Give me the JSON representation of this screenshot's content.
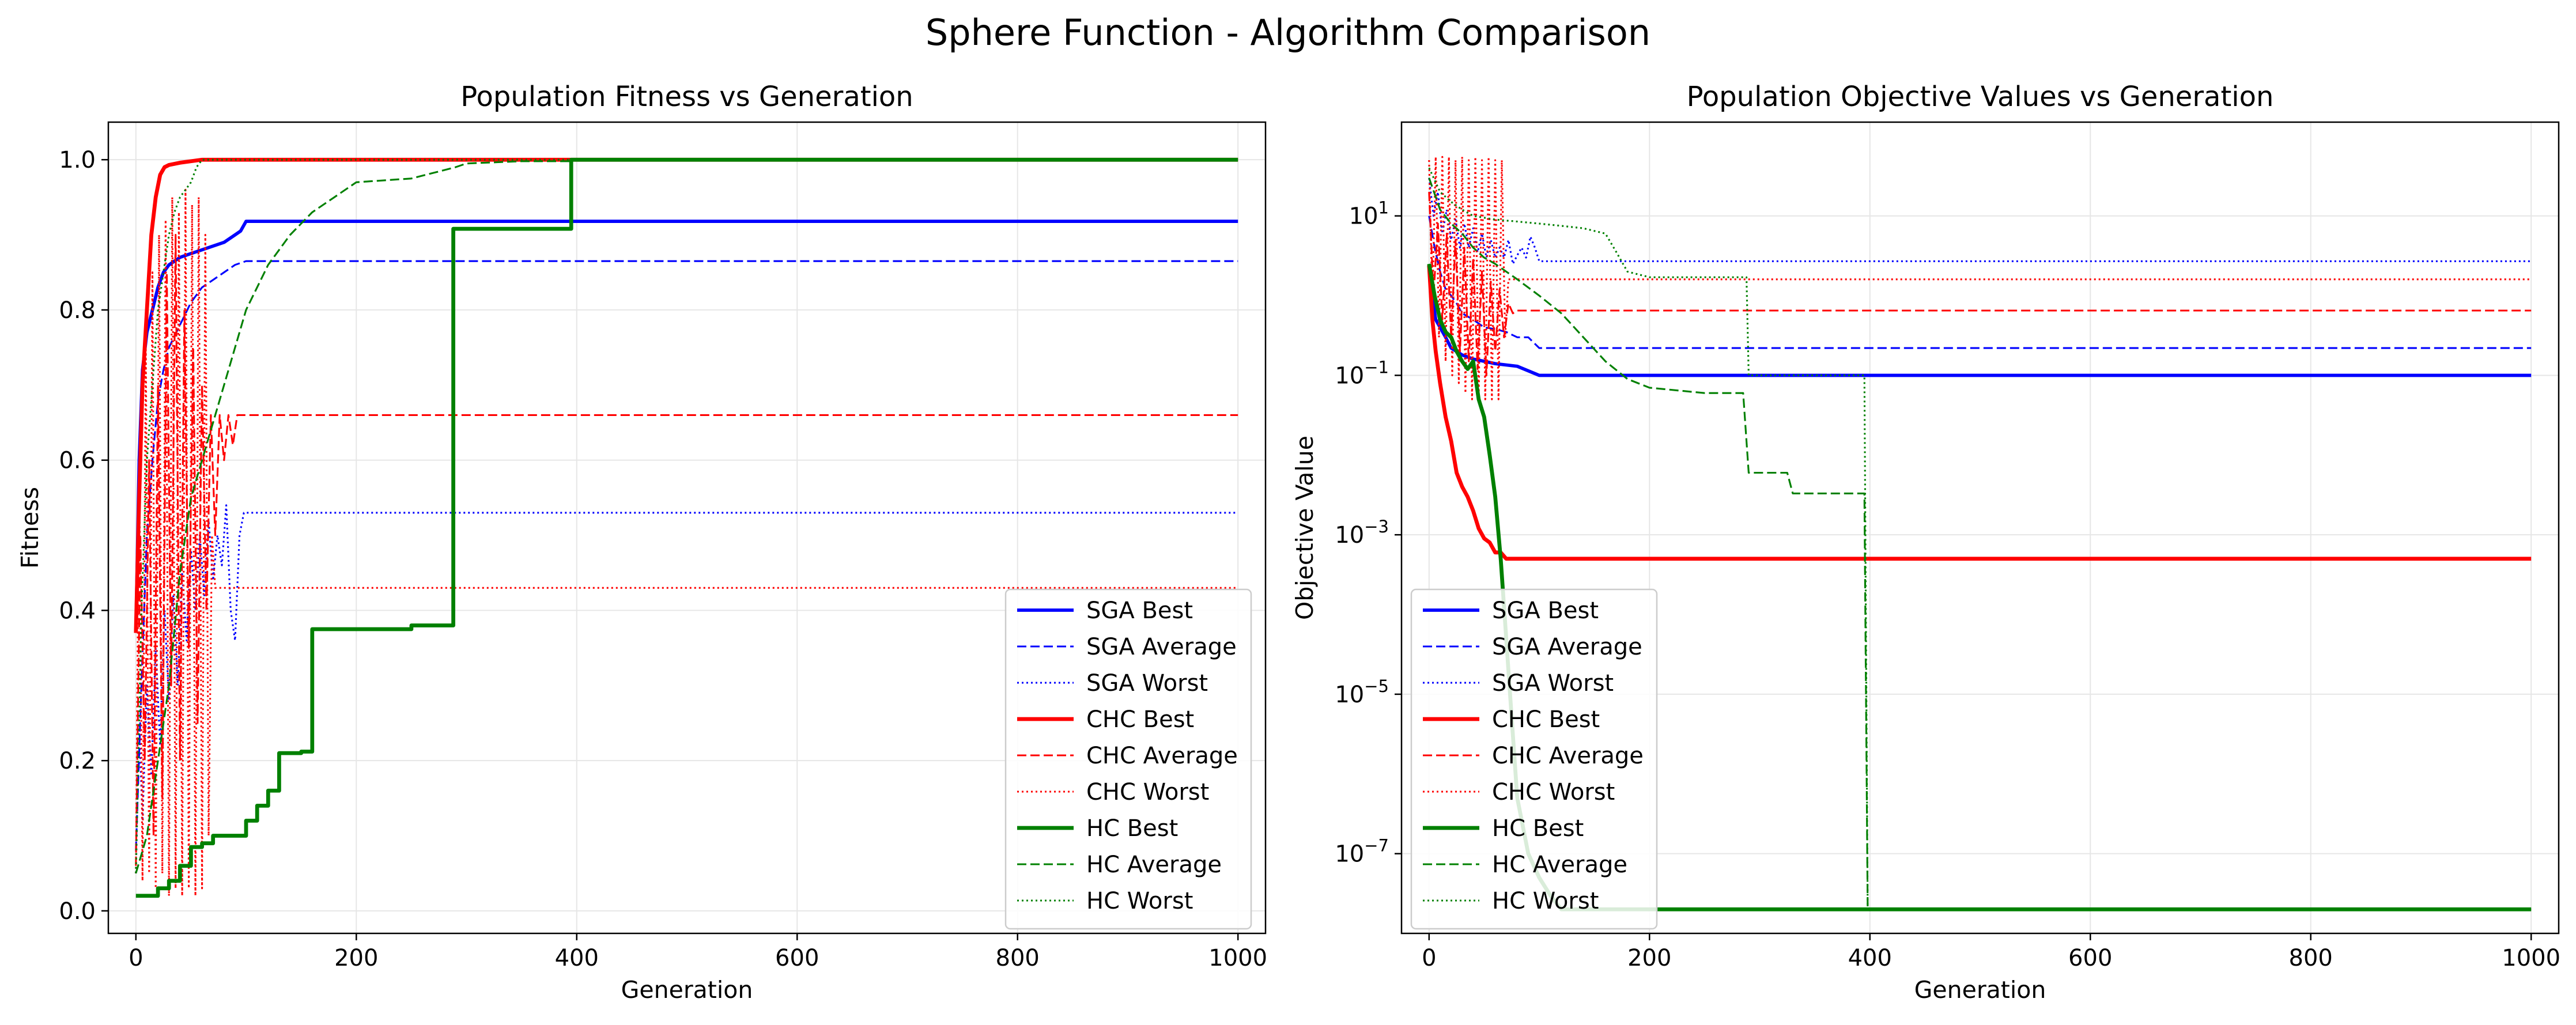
{
  "figure": {
    "suptitle": "Sphere Function - Algorithm Comparison"
  },
  "colors": {
    "sga": "#0000ff",
    "chc": "#ff0000",
    "hc": "#008000",
    "grid": "#e6e6e6",
    "axis": "#000000"
  },
  "chart_data": [
    {
      "type": "line",
      "title": "Population Fitness vs Generation",
      "xlabel": "Generation",
      "ylabel": "Fitness",
      "xlim": [
        -25,
        1025
      ],
      "ylim": [
        -0.03,
        1.05
      ],
      "yscale": "linear",
      "xticks": [
        0,
        200,
        400,
        600,
        800,
        1000
      ],
      "xtick_labels": [
        "0",
        "200",
        "400",
        "600",
        "800",
        "1000"
      ],
      "yticks": [
        0.0,
        0.2,
        0.4,
        0.6,
        0.8,
        1.0
      ],
      "ytick_labels": [
        "0.0",
        "0.2",
        "0.4",
        "0.6",
        "0.8",
        "1.0"
      ],
      "grid": true,
      "legend_position": "lower-right",
      "series": [
        {
          "name": "SGA Best",
          "color": "#0000ff",
          "style": "solid",
          "width": 2.2,
          "x": [
            0,
            3,
            6,
            10,
            15,
            20,
            25,
            30,
            40,
            50,
            60,
            70,
            80,
            90,
            95,
            100,
            1000
          ],
          "y": [
            0.37,
            0.6,
            0.72,
            0.77,
            0.8,
            0.83,
            0.85,
            0.86,
            0.87,
            0.875,
            0.88,
            0.885,
            0.89,
            0.9,
            0.905,
            0.918,
            0.918
          ]
        },
        {
          "name": "SGA Average",
          "color": "#0000ff",
          "style": "dashed",
          "width": 1.2,
          "x": [
            0,
            5,
            10,
            15,
            20,
            25,
            30,
            40,
            50,
            60,
            70,
            80,
            90,
            100,
            1000
          ],
          "y": [
            0.08,
            0.3,
            0.5,
            0.6,
            0.68,
            0.72,
            0.75,
            0.78,
            0.81,
            0.83,
            0.84,
            0.85,
            0.86,
            0.865,
            0.865
          ]
        },
        {
          "name": "SGA Worst",
          "color": "#0000ff",
          "style": "dotted",
          "width": 1.2,
          "x": [
            0,
            3,
            6,
            10,
            14,
            18,
            22,
            26,
            30,
            34,
            38,
            42,
            46,
            50,
            54,
            58,
            62,
            66,
            70,
            74,
            78,
            82,
            86,
            90,
            94,
            98,
            1000
          ],
          "y": [
            0.05,
            0.25,
            0.12,
            0.3,
            0.18,
            0.35,
            0.22,
            0.4,
            0.28,
            0.42,
            0.3,
            0.45,
            0.36,
            0.48,
            0.4,
            0.5,
            0.42,
            0.52,
            0.44,
            0.5,
            0.46,
            0.54,
            0.4,
            0.36,
            0.5,
            0.53,
            0.53
          ]
        },
        {
          "name": "CHC Best",
          "color": "#ff0000",
          "style": "solid",
          "width": 2.6,
          "x": [
            0,
            3,
            6,
            10,
            14,
            18,
            22,
            26,
            30,
            40,
            50,
            60,
            1000
          ],
          "y": [
            0.37,
            0.55,
            0.7,
            0.8,
            0.9,
            0.95,
            0.98,
            0.99,
            0.993,
            0.996,
            0.998,
            1.0,
            1.0
          ]
        },
        {
          "name": "CHC Average",
          "color": "#ff0000",
          "style": "dashed",
          "width": 1.2,
          "x": [
            0,
            4,
            8,
            12,
            16,
            20,
            24,
            28,
            32,
            36,
            40,
            44,
            48,
            52,
            56,
            60,
            64,
            68,
            72,
            76,
            80,
            84,
            88,
            92,
            96,
            100,
            1000
          ],
          "y": [
            0.06,
            0.5,
            0.2,
            0.6,
            0.1,
            0.7,
            0.15,
            0.85,
            0.3,
            0.9,
            0.2,
            0.8,
            0.35,
            0.75,
            0.25,
            0.7,
            0.4,
            0.66,
            0.5,
            0.66,
            0.6,
            0.66,
            0.62,
            0.66,
            0.66,
            0.66,
            0.66
          ]
        },
        {
          "name": "CHC Worst",
          "color": "#ff0000",
          "style": "dotted",
          "width": 1.2,
          "x": [
            0,
            3,
            6,
            9,
            12,
            15,
            18,
            21,
            24,
            27,
            30,
            33,
            36,
            39,
            42,
            45,
            48,
            51,
            54,
            57,
            60,
            63,
            66,
            69,
            72,
            75,
            1000
          ],
          "y": [
            0.05,
            0.6,
            0.04,
            0.75,
            0.05,
            0.85,
            0.03,
            0.9,
            0.05,
            0.92,
            0.02,
            0.95,
            0.03,
            0.93,
            0.02,
            0.96,
            0.03,
            0.94,
            0.02,
            0.95,
            0.03,
            0.9,
            0.1,
            0.5,
            0.43,
            0.43,
            0.43
          ]
        },
        {
          "name": "HC Best",
          "color": "#008000",
          "style": "solid",
          "width": 2.6,
          "x": [
            0,
            20,
            20,
            30,
            30,
            40,
            40,
            50,
            50,
            60,
            60,
            70,
            70,
            100,
            100,
            110,
            110,
            120,
            120,
            130,
            130,
            140,
            140,
            150,
            150,
            160,
            160,
            250,
            250,
            288,
            288,
            395,
            395,
            1000
          ],
          "y": [
            0.02,
            0.02,
            0.03,
            0.03,
            0.04,
            0.04,
            0.06,
            0.06,
            0.085,
            0.085,
            0.09,
            0.09,
            0.1,
            0.1,
            0.12,
            0.12,
            0.14,
            0.14,
            0.16,
            0.16,
            0.21,
            0.21,
            0.21,
            0.21,
            0.212,
            0.212,
            0.375,
            0.375,
            0.38,
            0.38,
            0.908,
            0.908,
            1.0,
            1.0
          ]
        },
        {
          "name": "HC Average",
          "color": "#008000",
          "style": "dashed",
          "width": 1.2,
          "x": [
            0,
            10,
            20,
            30,
            40,
            50,
            60,
            70,
            80,
            90,
            100,
            120,
            140,
            160,
            180,
            200,
            250,
            290,
            300,
            350,
            395,
            400,
            1000
          ],
          "y": [
            0.05,
            0.1,
            0.2,
            0.3,
            0.45,
            0.55,
            0.6,
            0.65,
            0.7,
            0.75,
            0.8,
            0.86,
            0.9,
            0.93,
            0.95,
            0.97,
            0.975,
            0.99,
            0.995,
            0.998,
            0.998,
            1.0,
            1.0
          ]
        },
        {
          "name": "HC Worst",
          "color": "#008000",
          "style": "dotted",
          "width": 1.2,
          "x": [
            0,
            5,
            10,
            15,
            20,
            25,
            30,
            35,
            40,
            45,
            50,
            55,
            60,
            1000
          ],
          "y": [
            0.05,
            0.4,
            0.6,
            0.7,
            0.8,
            0.85,
            0.9,
            0.93,
            0.95,
            0.96,
            0.97,
            0.99,
            1.0,
            1.0
          ]
        }
      ]
    },
    {
      "type": "line",
      "title": "Population Objective Values vs Generation",
      "xlabel": "Generation",
      "ylabel": "Objective Value",
      "xlim": [
        -25,
        1025
      ],
      "ylim": [
        1e-08,
        150
      ],
      "yscale": "log",
      "xticks": [
        0,
        200,
        400,
        600,
        800,
        1000
      ],
      "xtick_labels": [
        "0",
        "200",
        "400",
        "600",
        "800",
        "1000"
      ],
      "yticks": [
        1e-07,
        1e-05,
        0.001,
        0.1,
        10
      ],
      "ytick_labels": [
        {
          "base": "10",
          "exp": "−7"
        },
        {
          "base": "10",
          "exp": "−5"
        },
        {
          "base": "10",
          "exp": "−3"
        },
        {
          "base": "10",
          "exp": "−1"
        },
        {
          "base": "10",
          "exp": "1"
        }
      ],
      "grid": true,
      "legend_position": "lower-left",
      "series": [
        {
          "name": "SGA Best",
          "color": "#0000ff",
          "style": "solid",
          "width": 2.2,
          "x": [
            0,
            3,
            6,
            10,
            15,
            20,
            30,
            40,
            50,
            60,
            80,
            100,
            1000
          ],
          "y": [
            2.4,
            1.0,
            0.5,
            0.4,
            0.3,
            0.22,
            0.18,
            0.16,
            0.15,
            0.14,
            0.13,
            0.1,
            0.1
          ]
        },
        {
          "name": "SGA Average",
          "color": "#0000ff",
          "style": "dashed",
          "width": 1.2,
          "x": [
            0,
            5,
            10,
            15,
            20,
            25,
            30,
            40,
            50,
            60,
            70,
            80,
            90,
            100,
            1000
          ],
          "y": [
            10,
            4,
            2,
            1.2,
            1.0,
            0.8,
            0.6,
            0.5,
            0.4,
            0.38,
            0.35,
            0.3,
            0.3,
            0.22,
            0.22
          ]
        },
        {
          "name": "SGA Worst",
          "color": "#0000ff",
          "style": "dotted",
          "width": 1.2,
          "x": [
            0,
            4,
            8,
            12,
            16,
            20,
            24,
            28,
            32,
            36,
            40,
            44,
            48,
            52,
            56,
            60,
            64,
            68,
            72,
            76,
            80,
            84,
            88,
            92,
            96,
            100,
            1000
          ],
          "y": [
            30,
            10,
            20,
            6,
            12,
            5,
            9,
            4,
            8,
            4,
            7,
            3.5,
            6,
            3,
            5,
            3,
            4,
            3,
            5,
            2.5,
            3.2,
            4,
            3,
            5.5,
            4,
            2.7,
            2.7
          ]
        },
        {
          "name": "CHC Best",
          "color": "#ff0000",
          "style": "solid",
          "width": 2.6,
          "x": [
            0,
            3,
            6,
            10,
            15,
            20,
            25,
            30,
            35,
            40,
            45,
            50,
            55,
            60,
            65,
            70,
            1000
          ],
          "y": [
            2.4,
            0.5,
            0.2,
            0.08,
            0.03,
            0.015,
            0.006,
            0.004,
            0.003,
            0.002,
            0.0012,
            0.0009,
            0.0008,
            0.0006,
            0.0006,
            0.0005,
            0.0005
          ]
        },
        {
          "name": "CHC Average",
          "color": "#ff0000",
          "style": "dashed",
          "width": 1.2,
          "x": [
            0,
            4,
            8,
            12,
            16,
            20,
            24,
            28,
            32,
            36,
            40,
            44,
            48,
            52,
            56,
            60,
            64,
            68,
            72,
            76,
            80,
            100,
            1000
          ],
          "y": [
            20,
            1.0,
            8,
            0.5,
            6,
            0.3,
            5,
            0.2,
            4,
            0.15,
            3,
            0.12,
            2,
            0.1,
            1.5,
            0.2,
            1.2,
            0.3,
            0.8,
            0.6,
            0.65,
            0.65,
            0.65
          ]
        },
        {
          "name": "CHC Worst",
          "color": "#ff0000",
          "style": "dotted",
          "width": 1.2,
          "x": [
            0,
            3,
            6,
            9,
            12,
            15,
            18,
            21,
            24,
            27,
            30,
            33,
            36,
            39,
            42,
            45,
            48,
            51,
            54,
            57,
            60,
            63,
            66,
            69,
            72,
            75,
            1000
          ],
          "y": [
            50,
            0.8,
            55,
            0.3,
            55,
            0.15,
            55,
            0.1,
            50,
            0.08,
            55,
            0.06,
            50,
            0.05,
            55,
            0.05,
            50,
            0.05,
            55,
            0.05,
            50,
            0.05,
            50,
            0.3,
            1.6,
            1.6,
            1.6
          ]
        },
        {
          "name": "HC Best",
          "color": "#008000",
          "style": "solid",
          "width": 2.6,
          "x": [
            0,
            5,
            10,
            15,
            20,
            25,
            30,
            35,
            40,
            45,
            50,
            55,
            60,
            65,
            70,
            75,
            80,
            90,
            100,
            110,
            120,
            130,
            140,
            150,
            160,
            200,
            1000
          ],
          "y": [
            2.5,
            1.0,
            0.5,
            0.35,
            0.3,
            0.2,
            0.15,
            0.12,
            0.15,
            0.05,
            0.03,
            0.01,
            0.003,
            0.0005,
            5e-05,
            5e-06,
            5e-07,
            1e-07,
            5e-08,
            3e-08,
            2e-08,
            2e-08,
            2e-08,
            2e-08,
            2e-08,
            2e-08,
            2e-08
          ]
        },
        {
          "name": "HC Average",
          "color": "#008000",
          "style": "dashed",
          "width": 1.2,
          "x": [
            0,
            10,
            20,
            30,
            40,
            50,
            60,
            80,
            100,
            120,
            140,
            160,
            180,
            200,
            250,
            285,
            290,
            325,
            330,
            395,
            398,
            1000
          ],
          "y": [
            30,
            12,
            8,
            6,
            4,
            3,
            2.5,
            1.6,
            1.0,
            0.6,
            0.3,
            0.15,
            0.09,
            0.07,
            0.06,
            0.06,
            0.006,
            0.006,
            0.0033,
            0.0033,
            2e-08,
            2e-08
          ]
        },
        {
          "name": "HC Worst",
          "color": "#008000",
          "style": "dotted",
          "width": 1.2,
          "x": [
            0,
            10,
            20,
            30,
            40,
            60,
            80,
            100,
            120,
            140,
            160,
            170,
            180,
            200,
            280,
            288,
            290,
            395,
            398,
            1000
          ],
          "y": [
            40,
            20,
            15,
            12,
            10,
            9,
            8.5,
            8,
            7.5,
            7,
            6,
            3.5,
            2,
            1.7,
            1.7,
            1.7,
            0.1,
            0.1,
            2e-08,
            2e-08
          ]
        }
      ]
    }
  ]
}
